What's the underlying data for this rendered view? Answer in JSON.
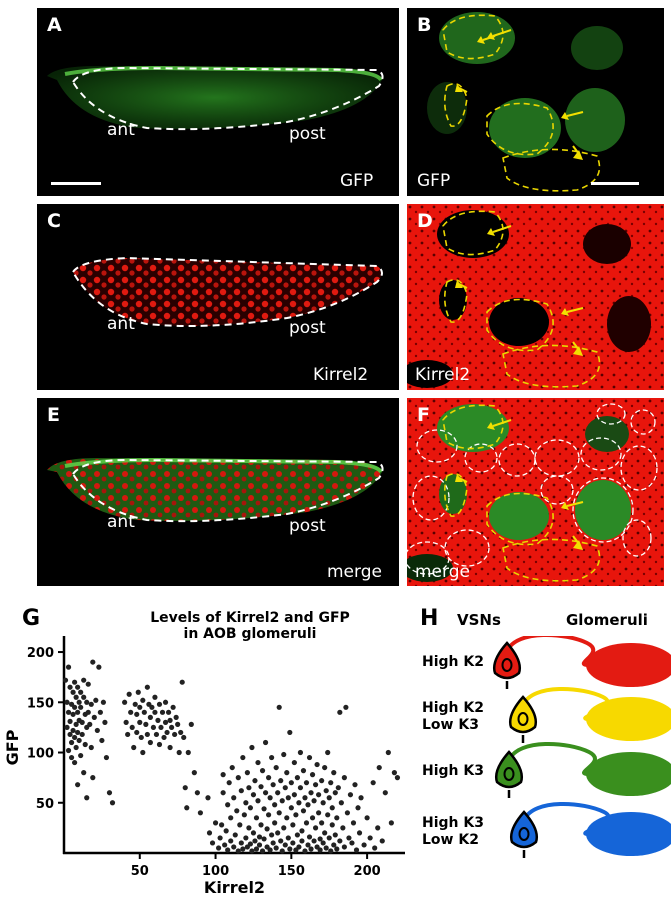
{
  "panels": {
    "A": {
      "label": "A",
      "channel": "GFP",
      "ant": "ant",
      "post": "post"
    },
    "B": {
      "label": "B",
      "channel": "GFP"
    },
    "C": {
      "label": "C",
      "channel": "Kirrel2",
      "ant": "ant",
      "post": "post"
    },
    "D": {
      "label": "D",
      "channel": "Kirrel2"
    },
    "E": {
      "label": "E",
      "channel": "merge",
      "ant": "ant",
      "post": "post"
    },
    "F": {
      "label": "F",
      "channel": "merge"
    }
  },
  "colors": {
    "gfp": "#2fa32f",
    "kirrel2": "#e8150c",
    "outline_white": "#ffffff",
    "outline_yellow": "#e9d600",
    "arrow": "#f2e000"
  },
  "chart_label": "G",
  "chart_title_line1": "Levels of Kirrel2 and GFP",
  "chart_title_line2": "in AOB glomeruli",
  "chart_data": {
    "type": "scatter",
    "xlabel": "Kirrel2",
    "ylabel": "GFP",
    "xlim": [
      0,
      225
    ],
    "ylim": [
      0,
      210
    ],
    "xticks": [
      50,
      100,
      150,
      200
    ],
    "yticks": [
      50,
      100,
      150,
      200
    ],
    "points": [
      [
        1,
        172
      ],
      [
        2,
        150
      ],
      [
        2,
        125
      ],
      [
        3,
        140
      ],
      [
        3,
        102
      ],
      [
        3,
        185
      ],
      [
        4,
        165
      ],
      [
        4,
        118
      ],
      [
        4,
        131
      ],
      [
        5,
        148
      ],
      [
        5,
        95
      ],
      [
        5,
        110
      ],
      [
        6,
        160
      ],
      [
        6,
        138
      ],
      [
        6,
        122
      ],
      [
        7,
        170
      ],
      [
        7,
        145
      ],
      [
        7,
        90
      ],
      [
        7,
        115
      ],
      [
        8,
        155
      ],
      [
        8,
        128
      ],
      [
        8,
        105
      ],
      [
        9,
        165
      ],
      [
        9,
        140
      ],
      [
        9,
        120
      ],
      [
        9,
        68
      ],
      [
        10,
        150
      ],
      [
        10,
        132
      ],
      [
        10,
        112
      ],
      [
        11,
        160
      ],
      [
        11,
        145
      ],
      [
        11,
        97
      ],
      [
        12,
        130
      ],
      [
        12,
        118
      ],
      [
        13,
        172
      ],
      [
        13,
        155
      ],
      [
        13,
        80
      ],
      [
        14,
        138
      ],
      [
        14,
        108
      ],
      [
        15,
        150
      ],
      [
        15,
        125
      ],
      [
        15,
        55
      ],
      [
        16,
        168
      ],
      [
        16,
        140
      ],
      [
        17,
        128
      ],
      [
        18,
        105
      ],
      [
        18,
        148
      ],
      [
        19,
        190
      ],
      [
        19,
        75
      ],
      [
        20,
        135
      ],
      [
        21,
        152
      ],
      [
        22,
        122
      ],
      [
        23,
        185
      ],
      [
        24,
        140
      ],
      [
        25,
        112
      ],
      [
        26,
        150
      ],
      [
        27,
        130
      ],
      [
        28,
        95
      ],
      [
        30,
        60
      ],
      [
        32,
        50
      ],
      [
        40,
        150
      ],
      [
        41,
        130
      ],
      [
        42,
        118
      ],
      [
        43,
        158
      ],
      [
        44,
        140
      ],
      [
        45,
        125
      ],
      [
        46,
        105
      ],
      [
        47,
        148
      ],
      [
        48,
        138
      ],
      [
        48,
        120
      ],
      [
        49,
        160
      ],
      [
        50,
        145
      ],
      [
        50,
        130
      ],
      [
        51,
        115
      ],
      [
        52,
        152
      ],
      [
        52,
        100
      ],
      [
        53,
        140
      ],
      [
        54,
        128
      ],
      [
        55,
        165
      ],
      [
        55,
        118
      ],
      [
        56,
        148
      ],
      [
        57,
        135
      ],
      [
        57,
        110
      ],
      [
        58,
        145
      ],
      [
        59,
        125
      ],
      [
        60,
        155
      ],
      [
        60,
        140
      ],
      [
        61,
        118
      ],
      [
        62,
        132
      ],
      [
        63,
        148
      ],
      [
        63,
        108
      ],
      [
        64,
        125
      ],
      [
        65,
        140
      ],
      [
        66,
        115
      ],
      [
        67,
        150
      ],
      [
        67,
        130
      ],
      [
        68,
        120
      ],
      [
        69,
        140
      ],
      [
        70,
        132
      ],
      [
        70,
        105
      ],
      [
        71,
        125
      ],
      [
        72,
        145
      ],
      [
        73,
        118
      ],
      [
        74,
        135
      ],
      [
        75,
        128
      ],
      [
        76,
        100
      ],
      [
        77,
        120
      ],
      [
        78,
        170
      ],
      [
        79,
        115
      ],
      [
        80,
        65
      ],
      [
        81,
        45
      ],
      [
        82,
        100
      ],
      [
        84,
        128
      ],
      [
        86,
        80
      ],
      [
        88,
        60
      ],
      [
        90,
        40
      ],
      [
        95,
        55
      ],
      [
        96,
        20
      ],
      [
        98,
        10
      ],
      [
        100,
        30
      ],
      [
        102,
        5
      ],
      [
        103,
        15
      ],
      [
        104,
        28
      ],
      [
        105,
        78
      ],
      [
        105,
        60
      ],
      [
        106,
        8
      ],
      [
        107,
        22
      ],
      [
        108,
        48
      ],
      [
        108,
        3
      ],
      [
        109,
        70
      ],
      [
        110,
        12
      ],
      [
        110,
        35
      ],
      [
        111,
        85
      ],
      [
        112,
        55
      ],
      [
        112,
        6
      ],
      [
        113,
        18
      ],
      [
        114,
        42
      ],
      [
        115,
        75
      ],
      [
        115,
        2
      ],
      [
        116,
        28
      ],
      [
        117,
        62
      ],
      [
        117,
        10
      ],
      [
        118,
        4
      ],
      [
        118,
        95
      ],
      [
        119,
        38
      ],
      [
        120,
        50
      ],
      [
        120,
        15
      ],
      [
        121,
        80
      ],
      [
        121,
        6
      ],
      [
        122,
        25
      ],
      [
        122,
        65
      ],
      [
        123,
        9
      ],
      [
        123,
        45
      ],
      [
        124,
        2
      ],
      [
        124,
        105
      ],
      [
        125,
        58
      ],
      [
        125,
        20
      ],
      [
        126,
        72
      ],
      [
        126,
        12
      ],
      [
        127,
        4
      ],
      [
        127,
        35
      ],
      [
        128,
        90
      ],
      [
        128,
        52
      ],
      [
        129,
        16
      ],
      [
        129,
        8
      ],
      [
        130,
        66
      ],
      [
        130,
        28
      ],
      [
        131,
        2
      ],
      [
        131,
        82
      ],
      [
        132,
        44
      ],
      [
        132,
        14
      ],
      [
        133,
        110
      ],
      [
        133,
        60
      ],
      [
        134,
        6
      ],
      [
        134,
        24
      ],
      [
        135,
        75
      ],
      [
        135,
        38
      ],
      [
        136,
        3
      ],
      [
        136,
        55
      ],
      [
        137,
        18
      ],
      [
        137,
        95
      ],
      [
        138,
        68
      ],
      [
        138,
        10
      ],
      [
        139,
        30
      ],
      [
        139,
        48
      ],
      [
        140,
        85
      ],
      [
        140,
        5
      ],
      [
        141,
        60
      ],
      [
        141,
        20
      ],
      [
        142,
        145
      ],
      [
        142,
        40
      ],
      [
        143,
        12
      ],
      [
        143,
        72
      ],
      [
        144,
        2
      ],
      [
        144,
        52
      ],
      [
        145,
        98
      ],
      [
        145,
        25
      ],
      [
        146,
        8
      ],
      [
        146,
        65
      ],
      [
        147,
        35
      ],
      [
        147,
        80
      ],
      [
        148,
        15
      ],
      [
        148,
        55
      ],
      [
        149,
        4
      ],
      [
        149,
        120
      ],
      [
        150,
        45
      ],
      [
        150,
        70
      ],
      [
        151,
        10
      ],
      [
        151,
        28
      ],
      [
        152,
        90
      ],
      [
        152,
        58
      ],
      [
        153,
        3
      ],
      [
        153,
        38
      ],
      [
        154,
        75
      ],
      [
        154,
        18
      ],
      [
        155,
        50
      ],
      [
        155,
        6
      ],
      [
        156,
        100
      ],
      [
        156,
        65
      ],
      [
        157,
        22
      ],
      [
        157,
        12
      ],
      [
        158,
        42
      ],
      [
        158,
        82
      ],
      [
        159,
        2
      ],
      [
        159,
        55
      ],
      [
        160,
        30
      ],
      [
        160,
        70
      ],
      [
        161,
        8
      ],
      [
        161,
        48
      ],
      [
        162,
        95
      ],
      [
        162,
        16
      ],
      [
        163,
        60
      ],
      [
        163,
        4
      ],
      [
        164,
        35
      ],
      [
        164,
        78
      ],
      [
        165,
        12
      ],
      [
        165,
        52
      ],
      [
        166,
        68
      ],
      [
        166,
        25
      ],
      [
        167,
        6
      ],
      [
        167,
        88
      ],
      [
        168,
        40
      ],
      [
        168,
        58
      ],
      [
        169,
        14
      ],
      [
        169,
        3
      ],
      [
        170,
        72
      ],
      [
        170,
        30
      ],
      [
        171,
        50
      ],
      [
        171,
        10
      ],
      [
        172,
        85
      ],
      [
        172,
        20
      ],
      [
        173,
        62
      ],
      [
        173,
        5
      ],
      [
        174,
        38
      ],
      [
        174,
        100
      ],
      [
        175,
        15
      ],
      [
        175,
        55
      ],
      [
        176,
        2
      ],
      [
        176,
        70
      ],
      [
        177,
        28
      ],
      [
        177,
        45
      ],
      [
        178,
        8
      ],
      [
        178,
        80
      ],
      [
        179,
        60
      ],
      [
        179,
        18
      ],
      [
        180,
        35
      ],
      [
        180,
        4
      ],
      [
        181,
        65
      ],
      [
        182,
        12
      ],
      [
        182,
        140
      ],
      [
        183,
        50
      ],
      [
        184,
        25
      ],
      [
        185,
        75
      ],
      [
        185,
        6
      ],
      [
        186,
        145
      ],
      [
        187,
        40
      ],
      [
        188,
        15
      ],
      [
        189,
        58
      ],
      [
        190,
        10
      ],
      [
        191,
        30
      ],
      [
        192,
        68
      ],
      [
        193,
        3
      ],
      [
        194,
        45
      ],
      [
        195,
        20
      ],
      [
        196,
        55
      ],
      [
        198,
        8
      ],
      [
        200,
        35
      ],
      [
        202,
        15
      ],
      [
        204,
        70
      ],
      [
        205,
        5
      ],
      [
        207,
        25
      ],
      [
        208,
        85
      ],
      [
        210,
        12
      ],
      [
        212,
        60
      ],
      [
        214,
        100
      ],
      [
        216,
        30
      ],
      [
        218,
        80
      ],
      [
        220,
        75
      ]
    ]
  },
  "diagram_label": "H",
  "diagram": {
    "col_vsns": "VSNs",
    "col_glomeruli": "Glomeruli",
    "rows": [
      {
        "line1": "High K2",
        "line2": "",
        "color": "#e31b12"
      },
      {
        "line1": "High K2",
        "line2": "Low K3",
        "color": "#f7d900"
      },
      {
        "line1": "High K3",
        "line2": "",
        "color": "#3a8f1e"
      },
      {
        "line1": "High K3",
        "line2": "Low K2",
        "color": "#1565d8"
      }
    ]
  }
}
